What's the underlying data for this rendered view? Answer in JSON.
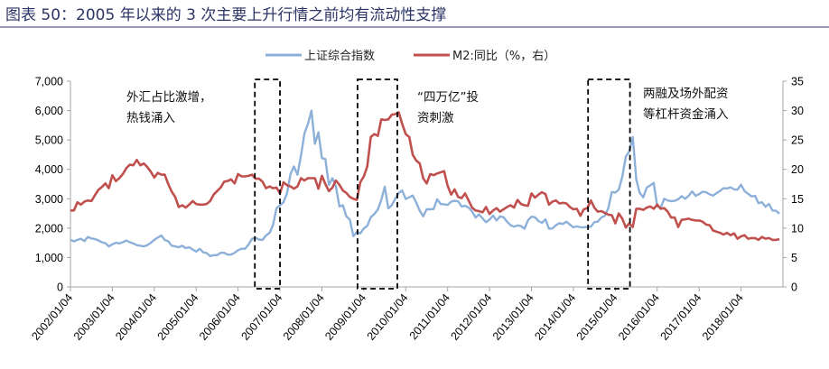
{
  "title": "图表 50：2005 年以来的 3 次主要上升行情之前均有流动性支撑",
  "chart_data": {
    "type": "line",
    "title": "图表 50：2005 年以来的 3 次主要上升行情之前均有流动性支撑",
    "x_start": 2002.0,
    "x_step_years": 0.0833333,
    "xlim": [
      2002,
      2019
    ],
    "x_tick_labels": [
      "2002/01/04",
      "2003/01/04",
      "2004/01/04",
      "2005/01/04",
      "2006/01/04",
      "2007/01/04",
      "2008/01/04",
      "2009/01/04",
      "2010/01/04",
      "2011/01/04",
      "2012/01/04",
      "2013/01/04",
      "2014/01/04",
      "2015/01/04",
      "2016/01/04",
      "2017/01/04",
      "2018/01/04"
    ],
    "y_left": {
      "ylim": [
        0,
        7000
      ],
      "ticks": [
        "0",
        "1,000",
        "2,000",
        "3,000",
        "4,000",
        "5,000",
        "6,000",
        "7,000"
      ]
    },
    "y_right": {
      "ylim": [
        0,
        35
      ],
      "ticks": [
        "0",
        "5",
        "10",
        "15",
        "20",
        "25",
        "30",
        "35"
      ]
    },
    "legend_position": "top-center",
    "grid": false,
    "series": [
      {
        "name": "上证综合指数",
        "axis": "left",
        "color": "#8db0d9",
        "values": [
          1600,
          1550,
          1600,
          1640,
          1560,
          1700,
          1650,
          1630,
          1580,
          1520,
          1490,
          1380,
          1450,
          1500,
          1480,
          1520,
          1580,
          1520,
          1480,
          1420,
          1400,
          1380,
          1420,
          1500,
          1600,
          1680,
          1750,
          1600,
          1550,
          1400,
          1380,
          1350,
          1400,
          1320,
          1350,
          1270,
          1200,
          1300,
          1180,
          1150,
          1050,
          1080,
          1080,
          1160,
          1160,
          1100,
          1100,
          1160,
          1250,
          1300,
          1300,
          1440,
          1640,
          1670,
          1610,
          1600,
          1750,
          1840,
          2100,
          2680,
          2780,
          2880,
          3180,
          3840,
          4100,
          3820,
          4470,
          5220,
          5550,
          6000,
          4870,
          5260,
          4380,
          4350,
          3470,
          3700,
          3430,
          2740,
          2780,
          2400,
          2290,
          1730,
          1870,
          1820,
          1990,
          2080,
          2370,
          2480,
          2630,
          2960,
          3410,
          2670,
          2780,
          3000,
          3200,
          3280,
          2990,
          3050,
          3110,
          2870,
          2590,
          2400,
          2640,
          2640,
          2650,
          2980,
          2820,
          2810,
          2790,
          2900,
          2930,
          2910,
          2740,
          2760,
          2700,
          2570,
          2360,
          2470,
          2330,
          2200,
          2290,
          2430,
          2260,
          2400,
          2370,
          2220,
          2100,
          2050,
          2090,
          2070,
          1980,
          2270,
          2390,
          2370,
          2240,
          2180,
          2300,
          1980,
          1990,
          2100,
          2170,
          2140,
          2220,
          2120,
          2030,
          2060,
          2030,
          2030,
          2040,
          2050,
          2200,
          2220,
          2360,
          2420,
          2680,
          3230,
          3210,
          3310,
          3750,
          4440,
          4610,
          5100,
          3660,
          3200,
          3050,
          3380,
          3450,
          3540,
          2740,
          2690,
          3000,
          2940,
          2920,
          2930,
          2980,
          3090,
          3000,
          3100,
          3250,
          3100,
          3160,
          3240,
          3220,
          3150,
          3110,
          3190,
          3270,
          3360,
          3350,
          3390,
          3320,
          3310,
          3480,
          3260,
          3170,
          3080,
          3100,
          2850,
          2880,
          2730,
          2820,
          2600,
          2590,
          2490
        ]
      },
      {
        "name": "M2:同比（%，右）",
        "axis": "right",
        "color": "#c0504d",
        "values": [
          13.0,
          13.0,
          14.4,
          14.0,
          14.5,
          14.7,
          14.6,
          15.6,
          16.5,
          17.0,
          17.6,
          16.8,
          19.0,
          18.0,
          18.5,
          19.2,
          20.2,
          20.8,
          20.7,
          21.6,
          20.7,
          21.0,
          20.4,
          19.6,
          18.6,
          19.4,
          19.1,
          19.1,
          17.5,
          16.2,
          15.3,
          13.6,
          13.9,
          13.5,
          14.0,
          14.6,
          14.1,
          14.0,
          14.0,
          14.1,
          14.6,
          15.7,
          16.3,
          16.9,
          17.9,
          18.0,
          18.3,
          17.6,
          19.2,
          18.8,
          18.8,
          18.9,
          19.1,
          18.4,
          18.4,
          17.9,
          16.8,
          17.1,
          16.8,
          16.9,
          15.9,
          17.8,
          17.3,
          17.1,
          16.7,
          17.1,
          18.5,
          18.1,
          18.5,
          18.5,
          18.5,
          16.7,
          18.9,
          17.5,
          16.3,
          16.9,
          18.1,
          17.4,
          16.4,
          16.0,
          15.3,
          15.0,
          14.8,
          17.8,
          18.8,
          20.5,
          25.5,
          26.0,
          25.7,
          28.5,
          28.4,
          28.5,
          29.3,
          29.4,
          29.7,
          27.7,
          26.0,
          25.5,
          22.5,
          21.5,
          21.0,
          18.5,
          17.6,
          19.2,
          19.0,
          19.3,
          19.5,
          19.7,
          17.2,
          15.7,
          16.6,
          15.3,
          15.1,
          15.9,
          14.7,
          13.5,
          13.0,
          12.9,
          12.7,
          13.6,
          12.4,
          13.0,
          13.4,
          12.8,
          13.2,
          13.6,
          13.9,
          13.5,
          14.8,
          14.1,
          13.9,
          13.8,
          15.9,
          15.2,
          15.7,
          16.1,
          15.8,
          14.0,
          14.5,
          14.7,
          14.2,
          14.3,
          14.2,
          13.6,
          13.2,
          13.3,
          12.1,
          13.2,
          13.4,
          14.7,
          13.5,
          12.8,
          12.9,
          12.6,
          12.3,
          12.2,
          10.8,
          12.5,
          11.6,
          10.1,
          10.8,
          10.2,
          13.3,
          13.3,
          13.1,
          13.5,
          13.7,
          13.3,
          14.0,
          13.3,
          13.4,
          12.8,
          11.8,
          11.8,
          10.2,
          11.4,
          11.5,
          11.6,
          11.4,
          11.3,
          11.3,
          11.1,
          10.6,
          10.5,
          9.6,
          9.4,
          9.2,
          8.9,
          9.2,
          8.8,
          9.1,
          8.2,
          8.6,
          8.8,
          8.2,
          8.3,
          8.3,
          8.0,
          8.5,
          8.2,
          8.3,
          8.0,
          8.0,
          8.1
        ]
      }
    ],
    "highlight_periods": [
      {
        "from": 2006.4,
        "to": 2007.0,
        "lines": [
          "外汇占比激增，",
          "热钱涌入"
        ]
      },
      {
        "from": 2008.85,
        "to": 2009.8,
        "lines": [
          "“四万亿”投",
          "资刺激"
        ]
      },
      {
        "from": 2014.35,
        "to": 2015.35,
        "lines": [
          "两融及场外配资",
          "等杠杆资金涌入"
        ]
      }
    ]
  }
}
